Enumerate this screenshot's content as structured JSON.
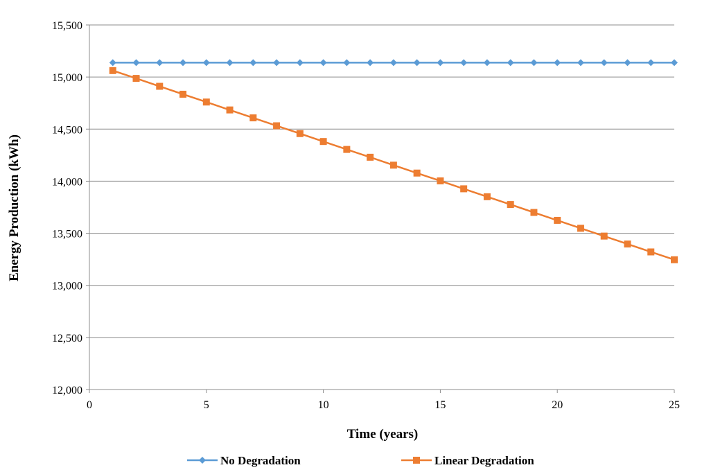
{
  "chart_data": {
    "type": "line",
    "title": "",
    "xlabel": "Time (years)",
    "ylabel": "Energy Production (kWh)",
    "xlim": [
      0,
      25
    ],
    "ylim": [
      12000,
      15500
    ],
    "x_ticks": [
      0,
      5,
      10,
      15,
      20,
      25
    ],
    "y_ticks": [
      12000,
      12500,
      13000,
      13500,
      14000,
      14500,
      15000,
      15500
    ],
    "x_tick_labels": [
      "0",
      "5",
      "10",
      "15",
      "20",
      "25"
    ],
    "y_tick_labels": [
      "12,000",
      "12,500",
      "13,000",
      "13,500",
      "14,000",
      "14,500",
      "15,000",
      "15,500"
    ],
    "grid": "horizontal",
    "legend_position": "bottom",
    "x": [
      1,
      2,
      3,
      4,
      5,
      6,
      7,
      8,
      9,
      10,
      11,
      12,
      13,
      14,
      15,
      16,
      17,
      18,
      19,
      20,
      21,
      22,
      23,
      24,
      25
    ],
    "series": [
      {
        "name": "No Degradation",
        "color": "#5B9BD5",
        "marker": "diamond",
        "values": [
          15138,
          15138,
          15138,
          15138,
          15138,
          15138,
          15138,
          15138,
          15138,
          15138,
          15138,
          15138,
          15138,
          15138,
          15138,
          15138,
          15138,
          15138,
          15138,
          15138,
          15138,
          15138,
          15138,
          15138,
          15138
        ]
      },
      {
        "name": "Linear Degradation",
        "color": "#ED7D31",
        "marker": "square",
        "values": [
          15062,
          14987,
          14911,
          14835,
          14760,
          14684,
          14608,
          14532,
          14457,
          14381,
          14305,
          14230,
          14154,
          14078,
          14003,
          13927,
          13851,
          13776,
          13700,
          13624,
          13548,
          13473,
          13397,
          13321,
          13246
        ]
      }
    ]
  }
}
